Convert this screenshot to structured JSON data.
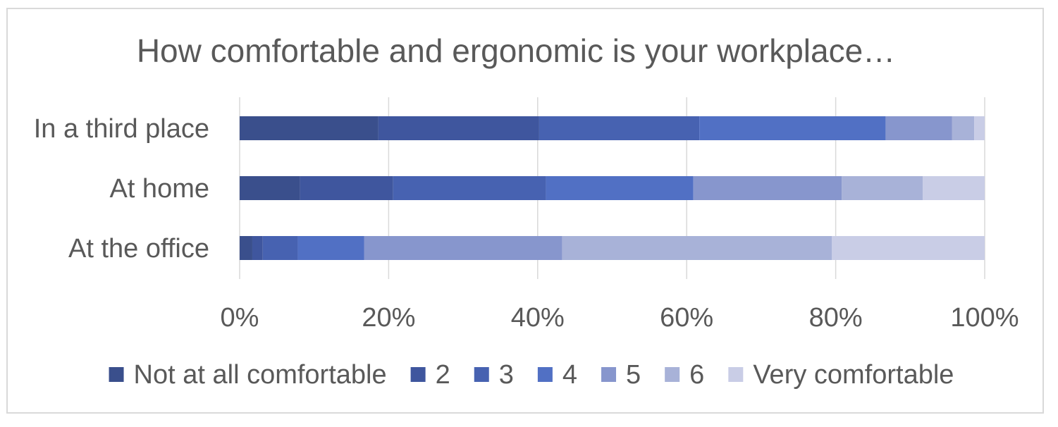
{
  "chart_data": {
    "type": "bar",
    "orientation": "horizontal",
    "stacked": "percent",
    "title": "How comfortable and ergonomic is your workplace…",
    "categories": [
      "In a third place",
      "At home",
      "At the office"
    ],
    "x_ticks": [
      "0%",
      "20%",
      "40%",
      "60%",
      "80%",
      "100%"
    ],
    "xlim": [
      0,
      100
    ],
    "grid": "vertical",
    "legend_position": "bottom",
    "series": [
      {
        "name": "Not at all comfortable",
        "color": "#3a4f8c",
        "values": [
          18.6,
          8.1,
          1.7
        ]
      },
      {
        "name": "2",
        "color": "#3f569e",
        "values": [
          21.6,
          12.5,
          1.4
        ]
      },
      {
        "name": "3",
        "color": "#4762b1",
        "values": [
          21.5,
          20.5,
          4.7
        ]
      },
      {
        "name": "4",
        "color": "#5170c4",
        "values": [
          25.0,
          19.8,
          8.9
        ]
      },
      {
        "name": "5",
        "color": "#8796cd",
        "values": [
          8.9,
          19.9,
          26.6
        ]
      },
      {
        "name": "6",
        "color": "#a8b2d8",
        "values": [
          3.0,
          10.9,
          36.2
        ]
      },
      {
        "name": "Very comfortable",
        "color": "#c9cde6",
        "values": [
          1.4,
          8.3,
          20.5
        ]
      }
    ]
  }
}
